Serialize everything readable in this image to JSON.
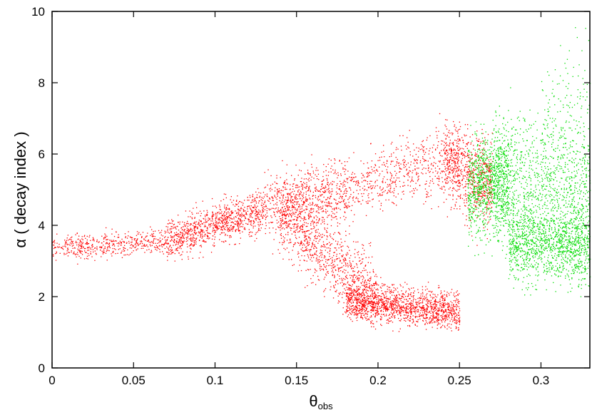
{
  "chart_data": {
    "type": "scatter",
    "title": "",
    "xlabel": "θ",
    "xlabel_sub": "obs",
    "ylabel": "α ( decay index )",
    "xlim": [
      0,
      0.33
    ],
    "ylim": [
      0,
      10
    ],
    "xticks": [
      0,
      0.05,
      0.1,
      0.15,
      0.2,
      0.25,
      0.3
    ],
    "xtick_labels": [
      "0",
      "0.05",
      "0.1",
      "0.15",
      "0.2",
      "0.25",
      "0.3"
    ],
    "yticks": [
      0,
      2,
      4,
      6,
      8,
      10
    ],
    "ytick_labels": [
      "0",
      "2",
      "4",
      "6",
      "8",
      "10"
    ],
    "grid": false,
    "legend": false,
    "colors": {
      "red_series": "#ff0000",
      "green_series": "#00dd00",
      "axes": "#000000"
    },
    "series": [
      {
        "color": "#ff0000",
        "density_regions": [
          {
            "x_range": [
              0.0,
              0.07
            ],
            "y_center_start": 3.35,
            "y_center_end": 3.6,
            "y_spread": 0.18,
            "weight": 500
          },
          {
            "x_range": [
              0.07,
              0.13
            ],
            "y_center_start": 3.6,
            "y_center_end": 4.45,
            "y_spread": 0.28,
            "weight": 1000
          },
          {
            "x_range": [
              0.13,
              0.18
            ],
            "y_center_start": 4.45,
            "y_center_end": 5.0,
            "y_spread": 0.45,
            "weight": 700
          },
          {
            "x_range": [
              0.14,
              0.2
            ],
            "y_center_start": 4.3,
            "y_center_end": 2.0,
            "y_spread": 0.5,
            "weight": 900
          },
          {
            "x_range": [
              0.18,
              0.25
            ],
            "y_center_start": 1.9,
            "y_center_end": 1.6,
            "y_spread": 0.25,
            "weight": 1500
          },
          {
            "x_range": [
              0.18,
              0.25
            ],
            "y_center_start": 5.0,
            "y_center_end": 6.0,
            "y_spread": 0.45,
            "weight": 600
          },
          {
            "x_range": [
              0.24,
              0.27
            ],
            "y_center_start": 5.8,
            "y_center_end": 5.2,
            "y_spread": 0.6,
            "weight": 700
          }
        ]
      },
      {
        "color": "#00dd00",
        "density_regions": [
          {
            "x_range": [
              0.255,
              0.28
            ],
            "y_center_start": 5.0,
            "y_center_end": 5.3,
            "y_spread": 0.7,
            "weight": 900
          },
          {
            "x_range": [
              0.27,
              0.33
            ],
            "y_center_start": 5.3,
            "y_center_end": 5.0,
            "y_spread": 0.9,
            "weight": 1100
          },
          {
            "x_range": [
              0.28,
              0.33
            ],
            "y_center_start": 3.5,
            "y_center_end": 3.4,
            "y_spread": 0.5,
            "weight": 1200
          },
          {
            "x_range": [
              0.3,
              0.33
            ],
            "y_center_start": 6.5,
            "y_center_end": 7.5,
            "y_spread": 1.0,
            "weight": 150
          }
        ]
      }
    ]
  }
}
